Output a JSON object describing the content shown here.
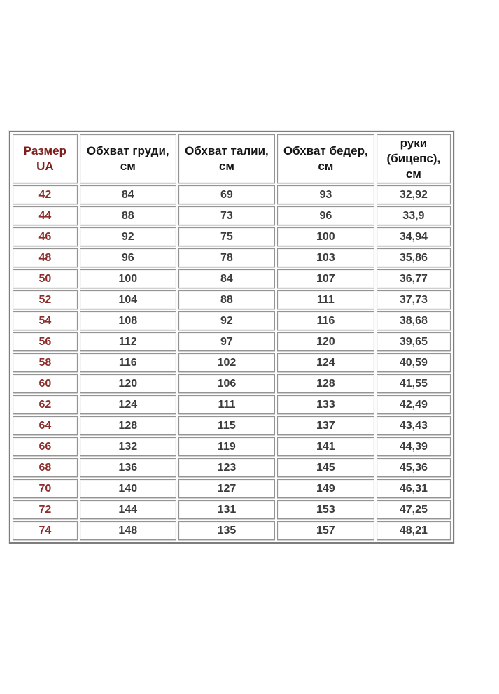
{
  "page": {
    "background": "#ffffff"
  },
  "colors": {
    "accent_text": "#7c1f1d",
    "size_text": "#8b2e2c",
    "value_text": "#3c3c3c",
    "outer_border": "#7d7d7d",
    "cell_border": "#949494"
  },
  "size_table": {
    "headers": [
      "Размер\nUA",
      "Обхват груди,\nсм",
      "Обхват талии,\nсм",
      "Обхват бедер,\nсм",
      "руки\n(бицепс),\nсм"
    ],
    "rows": [
      [
        "42",
        "84",
        "69",
        "93",
        "32,92"
      ],
      [
        "44",
        "88",
        "73",
        "96",
        "33,9"
      ],
      [
        "46",
        "92",
        "75",
        "100",
        "34,94"
      ],
      [
        "48",
        "96",
        "78",
        "103",
        "35,86"
      ],
      [
        "50",
        "100",
        "84",
        "107",
        "36,77"
      ],
      [
        "52",
        "104",
        "88",
        "111",
        "37,73"
      ],
      [
        "54",
        "108",
        "92",
        "116",
        "38,68"
      ],
      [
        "56",
        "112",
        "97",
        "120",
        "39,65"
      ],
      [
        "58",
        "116",
        "102",
        "124",
        "40,59"
      ],
      [
        "60",
        "120",
        "106",
        "128",
        "41,55"
      ],
      [
        "62",
        "124",
        "111",
        "133",
        "42,49"
      ],
      [
        "64",
        "128",
        "115",
        "137",
        "43,43"
      ],
      [
        "66",
        "132",
        "119",
        "141",
        "44,39"
      ],
      [
        "68",
        "136",
        "123",
        "145",
        "45,36"
      ],
      [
        "70",
        "140",
        "127",
        "149",
        "46,31"
      ],
      [
        "72",
        "144",
        "131",
        "153",
        "47,25"
      ],
      [
        "74",
        "148",
        "135",
        "157",
        "48,21"
      ]
    ]
  },
  "chart_data": {
    "type": "table",
    "title": "",
    "columns": [
      "Размер UA",
      "Обхват груди, см",
      "Обхват талии, см",
      "Обхват бедер, см",
      "руки (бицепс), см"
    ],
    "rows": [
      [
        42,
        84,
        69,
        93,
        32.92
      ],
      [
        44,
        88,
        73,
        96,
        33.9
      ],
      [
        46,
        92,
        75,
        100,
        34.94
      ],
      [
        48,
        96,
        78,
        103,
        35.86
      ],
      [
        50,
        100,
        84,
        107,
        36.77
      ],
      [
        52,
        104,
        88,
        111,
        37.73
      ],
      [
        54,
        108,
        92,
        116,
        38.68
      ],
      [
        56,
        112,
        97,
        120,
        39.65
      ],
      [
        58,
        116,
        102,
        124,
        40.59
      ],
      [
        60,
        120,
        106,
        128,
        41.55
      ],
      [
        62,
        124,
        111,
        133,
        42.49
      ],
      [
        64,
        128,
        115,
        137,
        43.43
      ],
      [
        66,
        132,
        119,
        141,
        44.39
      ],
      [
        68,
        136,
        123,
        145,
        45.36
      ],
      [
        70,
        140,
        127,
        149,
        46.31
      ],
      [
        72,
        144,
        131,
        153,
        47.25
      ],
      [
        74,
        148,
        135,
        157,
        48.21
      ]
    ]
  }
}
